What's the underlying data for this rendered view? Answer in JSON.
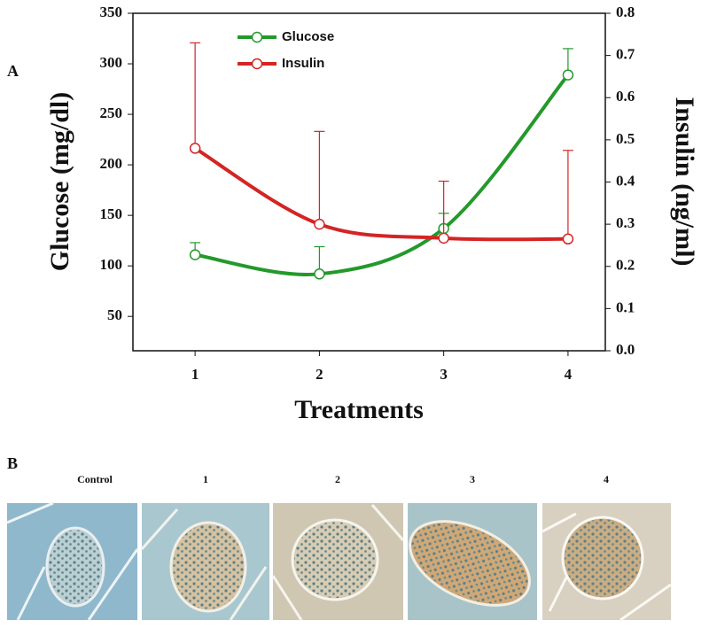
{
  "chart_data": {
    "type": "line",
    "xlabel": "Treatments",
    "ylabel": "Glucose (mg/dl)",
    "y2label": "Insulin (ng/ml)",
    "x": [
      1,
      2,
      3,
      4
    ],
    "xlim": [
      0.5,
      4.3
    ],
    "xticks": [
      1,
      2,
      3,
      4
    ],
    "ylim": [
      16,
      350
    ],
    "yticks": [
      50,
      100,
      150,
      200,
      250,
      300,
      350
    ],
    "y2lim": [
      0,
      0.8
    ],
    "y2ticks": [
      {
        "value": 0,
        "label": "0.0"
      },
      {
        "value": 0.1,
        "label": "0.1"
      },
      {
        "value": 0.2,
        "label": "0.2"
      },
      {
        "value": 0.3,
        "label": "0.3"
      },
      {
        "value": 0.4,
        "label": "0.4"
      },
      {
        "value": 0.5,
        "label": "0.5"
      },
      {
        "value": 0.6,
        "label": "0.6"
      },
      {
        "value": 0.7,
        "label": "0.7"
      },
      {
        "value": 0.8,
        "label": "0.8"
      }
    ],
    "grid": false,
    "legend": "top-left",
    "series": [
      {
        "name": "Glucose",
        "color": "#23992b",
        "values": [
          111,
          92,
          137,
          289
        ],
        "errors": [
          12,
          27,
          15,
          26
        ]
      },
      {
        "name": "Insulin",
        "color": "#d42424",
        "axis": "y2",
        "values": [
          0.48,
          0.3,
          0.267,
          0.265
        ],
        "errors": [
          0.25,
          0.22,
          0.135,
          0.21
        ]
      }
    ]
  },
  "panel_a_label": "A",
  "panel_b": {
    "label": "B",
    "columns": [
      "Control",
      "1",
      "2",
      "3",
      "4"
    ]
  }
}
